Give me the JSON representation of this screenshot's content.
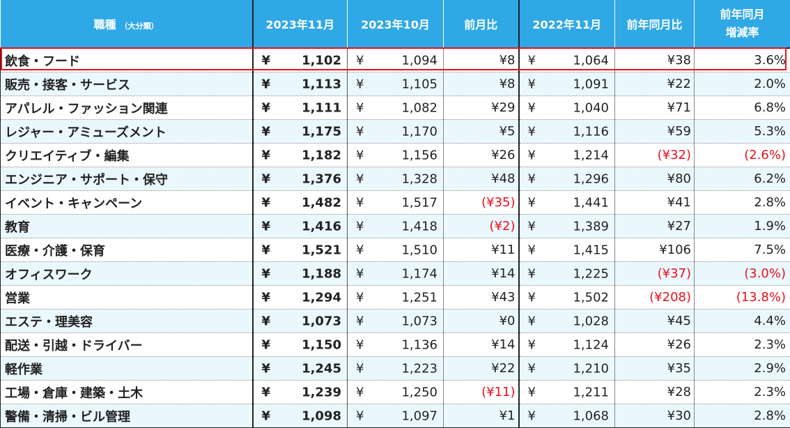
{
  "headers": {
    "category": "職種",
    "category_sub": "（大分類）",
    "current": "2023年11月",
    "prev_month": "2023年10月",
    "mom": "前月比",
    "last_year": "2022年11月",
    "yoy": "前年同月比",
    "rate_line1": "前年同月",
    "rate_line2": "増減率"
  },
  "currency_symbol": "¥",
  "colors": {
    "header_bg": "#2fa8e6",
    "stripe": "#eaf7fd",
    "negative": "#e8101a",
    "highlight": "#e8101a"
  },
  "highlighted_row": 0,
  "rows": [
    {
      "name": "飲食・フード",
      "current": "1,102",
      "prev": "1,094",
      "mom": "¥8",
      "mom_neg": false,
      "ly": "1,064",
      "yoy": "¥38",
      "yoy_neg": false,
      "rate": "3.6%",
      "rate_neg": false
    },
    {
      "name": "販売・接客・サービス",
      "current": "1,113",
      "prev": "1,105",
      "mom": "¥8",
      "mom_neg": false,
      "ly": "1,091",
      "yoy": "¥22",
      "yoy_neg": false,
      "rate": "2.0%",
      "rate_neg": false
    },
    {
      "name": "アパレル・ファッション関連",
      "current": "1,111",
      "prev": "1,082",
      "mom": "¥29",
      "mom_neg": false,
      "ly": "1,040",
      "yoy": "¥71",
      "yoy_neg": false,
      "rate": "6.8%",
      "rate_neg": false
    },
    {
      "name": "レジャー・アミューズメント",
      "current": "1,175",
      "prev": "1,170",
      "mom": "¥5",
      "mom_neg": false,
      "ly": "1,116",
      "yoy": "¥59",
      "yoy_neg": false,
      "rate": "5.3%",
      "rate_neg": false
    },
    {
      "name": "クリエイティブ・編集",
      "current": "1,182",
      "prev": "1,156",
      "mom": "¥26",
      "mom_neg": false,
      "ly": "1,214",
      "yoy": "(¥32)",
      "yoy_neg": true,
      "rate": "(2.6%)",
      "rate_neg": true
    },
    {
      "name": "エンジニア・サポート・保守",
      "current": "1,376",
      "prev": "1,328",
      "mom": "¥48",
      "mom_neg": false,
      "ly": "1,296",
      "yoy": "¥80",
      "yoy_neg": false,
      "rate": "6.2%",
      "rate_neg": false
    },
    {
      "name": "イベント・キャンペーン",
      "current": "1,482",
      "prev": "1,517",
      "mom": "(¥35)",
      "mom_neg": true,
      "ly": "1,441",
      "yoy": "¥41",
      "yoy_neg": false,
      "rate": "2.8%",
      "rate_neg": false
    },
    {
      "name": "教育",
      "current": "1,416",
      "prev": "1,418",
      "mom": "(¥2)",
      "mom_neg": true,
      "ly": "1,389",
      "yoy": "¥27",
      "yoy_neg": false,
      "rate": "1.9%",
      "rate_neg": false
    },
    {
      "name": "医療・介護・保育",
      "current": "1,521",
      "prev": "1,510",
      "mom": "¥11",
      "mom_neg": false,
      "ly": "1,415",
      "yoy": "¥106",
      "yoy_neg": false,
      "rate": "7.5%",
      "rate_neg": false
    },
    {
      "name": "オフィスワーク",
      "current": "1,188",
      "prev": "1,174",
      "mom": "¥14",
      "mom_neg": false,
      "ly": "1,225",
      "yoy": "(¥37)",
      "yoy_neg": true,
      "rate": "(3.0%)",
      "rate_neg": true
    },
    {
      "name": "営業",
      "current": "1,294",
      "prev": "1,251",
      "mom": "¥43",
      "mom_neg": false,
      "ly": "1,502",
      "yoy": "(¥208)",
      "yoy_neg": true,
      "rate": "(13.8%)",
      "rate_neg": true
    },
    {
      "name": "エステ・理美容",
      "current": "1,073",
      "prev": "1,073",
      "mom": "¥0",
      "mom_neg": false,
      "ly": "1,028",
      "yoy": "¥45",
      "yoy_neg": false,
      "rate": "4.4%",
      "rate_neg": false
    },
    {
      "name": "配送・引越・ドライバー",
      "current": "1,150",
      "prev": "1,136",
      "mom": "¥14",
      "mom_neg": false,
      "ly": "1,124",
      "yoy": "¥26",
      "yoy_neg": false,
      "rate": "2.3%",
      "rate_neg": false
    },
    {
      "name": "軽作業",
      "current": "1,245",
      "prev": "1,223",
      "mom": "¥22",
      "mom_neg": false,
      "ly": "1,210",
      "yoy": "¥35",
      "yoy_neg": false,
      "rate": "2.9%",
      "rate_neg": false
    },
    {
      "name": "工場・倉庫・建築・土木",
      "current": "1,239",
      "prev": "1,250",
      "mom": "(¥11)",
      "mom_neg": true,
      "ly": "1,211",
      "yoy": "¥28",
      "yoy_neg": false,
      "rate": "2.3%",
      "rate_neg": false
    },
    {
      "name": "警備・清掃・ビル管理",
      "current": "1,098",
      "prev": "1,097",
      "mom": "¥1",
      "mom_neg": false,
      "ly": "1,068",
      "yoy": "¥30",
      "yoy_neg": false,
      "rate": "2.8%",
      "rate_neg": false
    }
  ]
}
